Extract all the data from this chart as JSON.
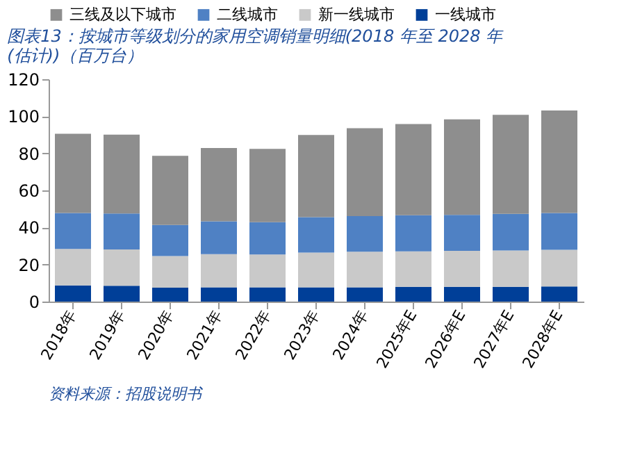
{
  "chart_data": {
    "type": "bar",
    "title": "图表13：按城市等级划分的家用空调销量明细(2018 年至 2028 年(估计))（百万台）",
    "categories": [
      "2018年",
      "2019年",
      "2020年",
      "2021年",
      "2022年",
      "2023年",
      "2024年",
      "2025年E",
      "2026年E",
      "2027年E",
      "2028年E"
    ],
    "stacked": true,
    "series": [
      {
        "name": "一线城市",
        "color": "#003f98",
        "values": [
          8.7,
          8.5,
          7.5,
          7.7,
          7.7,
          7.7,
          7.7,
          8.0,
          8.0,
          8.0,
          8.2
        ]
      },
      {
        "name": "新一线城市",
        "color": "#c9c9c9",
        "values": [
          19.7,
          19.6,
          17.1,
          17.9,
          17.7,
          18.7,
          19.2,
          19.1,
          19.4,
          19.6,
          19.7
        ]
      },
      {
        "name": "二线城市",
        "color": "#4f81c4",
        "values": [
          19.4,
          19.4,
          16.7,
          17.7,
          17.4,
          19.2,
          19.2,
          19.5,
          19.4,
          19.7,
          19.9
        ]
      },
      {
        "name": "三线及以下城市",
        "color": "#8e8e8e",
        "values": [
          42.8,
          42.6,
          37.4,
          39.6,
          39.6,
          44.3,
          47.5,
          49.2,
          51.5,
          53.5,
          55.3
        ]
      }
    ],
    "ylim": [
      0,
      120
    ],
    "yticks": [
      0,
      20,
      40,
      60,
      80,
      100,
      120
    ],
    "grid": false,
    "legend": "top",
    "annotations": [
      "资料来源：招股说明书"
    ]
  }
}
